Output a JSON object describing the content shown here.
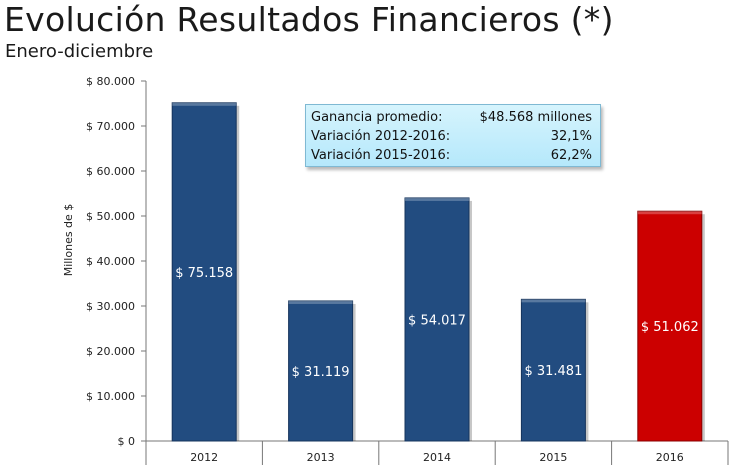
{
  "header": {
    "title": "Evolución Resultados Financieros (*)",
    "subtitle": "Enero-diciembre"
  },
  "info_box": {
    "rows": [
      {
        "label": "Ganancia promedio:",
        "value": "$48.568 millones"
      },
      {
        "label": "Variación 2012-2016:",
        "value": "32,1%"
      },
      {
        "label": "Variación 2015-2016:",
        "value": "62,2%"
      }
    ]
  },
  "colors": {
    "bar": "#224c80",
    "highlight_bar": "#cc0000",
    "box_bg": "#c6eefc"
  },
  "chart_data": {
    "type": "bar",
    "categories": [
      "2012",
      "2013",
      "2014",
      "2015",
      "2016"
    ],
    "values": [
      75158,
      31119,
      54017,
      31481,
      51062
    ],
    "data_labels": [
      "$ 75.158",
      "$ 31.119",
      "$ 54.017",
      "$ 31.481",
      "$ 51.062"
    ],
    "highlight_index": 4,
    "ylabel": "Millones de $",
    "ylim": [
      0,
      80000
    ],
    "yticks": [
      0,
      10000,
      20000,
      30000,
      40000,
      50000,
      60000,
      70000,
      80000
    ],
    "ytick_labels": [
      "$ 0",
      "$ 10.000",
      "$ 20.000",
      "$ 30.000",
      "$ 40.000",
      "$ 50.000",
      "$ 60.000",
      "$ 70.000",
      "$ 80.000"
    ],
    "grid": false,
    "legend": "none"
  }
}
